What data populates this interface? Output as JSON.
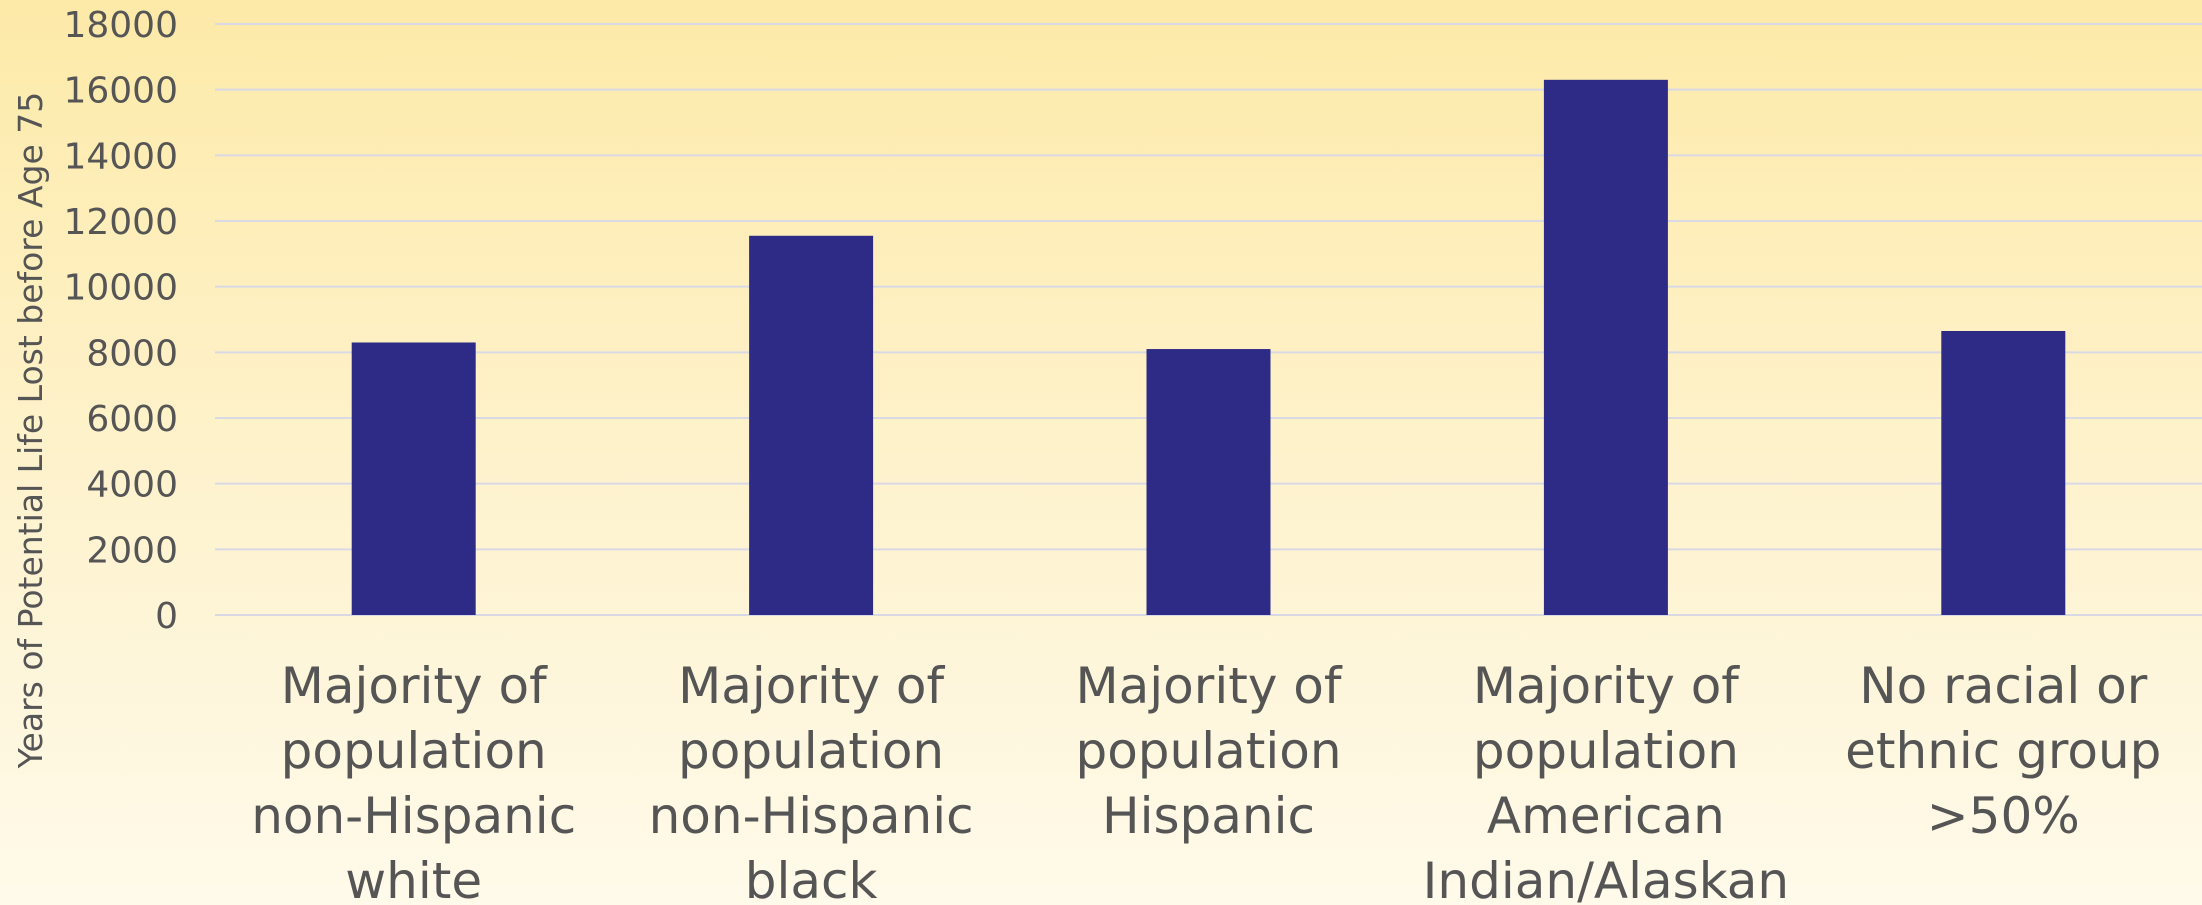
{
  "chart_data": {
    "type": "bar",
    "title": "",
    "xlabel": "",
    "ylabel": "Years of Potential Life Lost before Age 75",
    "ylim": [
      0,
      18000
    ],
    "y_ticks": [
      0,
      2000,
      4000,
      6000,
      8000,
      10000,
      12000,
      14000,
      16000,
      18000
    ],
    "grid": true,
    "legend": "none",
    "categories": [
      [
        "Majority of",
        "population",
        "non-Hispanic",
        "white"
      ],
      [
        "Majority of",
        "population",
        "non-Hispanic",
        "black"
      ],
      [
        "Majority of",
        "population",
        "Hispanic"
      ],
      [
        "Majority of",
        "population",
        "American",
        "Indian/Alaskan"
      ],
      [
        "No racial or",
        "ethnic group",
        ">50%"
      ]
    ],
    "values": [
      8300,
      11550,
      8100,
      16300,
      8650
    ],
    "colors": {
      "bar": "#2e2b87",
      "text": "#555555",
      "grid": "#d9d9e6"
    }
  }
}
